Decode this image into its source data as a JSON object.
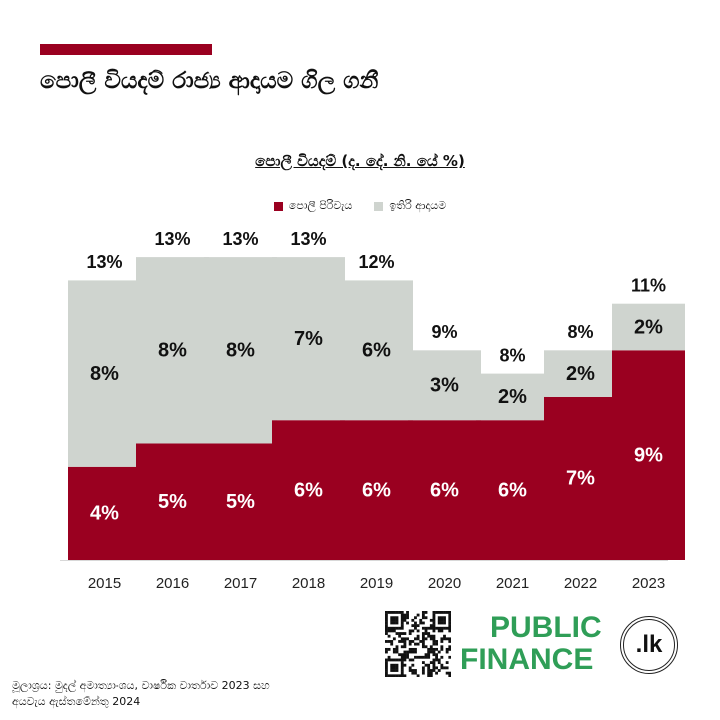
{
  "header": {
    "title": "පොලී වියදම් රාජ්‍ය ආදායම ගිල ගනී"
  },
  "colors": {
    "accent": "#9a0020",
    "interest": "#9a0020",
    "other": "#cfd4cf"
  },
  "chart_data": {
    "type": "bar",
    "stacked": true,
    "title": "පොලී වියදම් (ද. දේ. නි. යේ %)",
    "categories": [
      "2015",
      "2016",
      "2017",
      "2018",
      "2019",
      "2020",
      "2021",
      "2022",
      "2023"
    ],
    "series": [
      {
        "name": "පොලී පිරිවැය",
        "color": "#9a0020",
        "values": [
          4,
          5,
          5,
          6,
          6,
          6,
          6,
          7,
          9
        ],
        "labels": [
          "4%",
          "5%",
          "5%",
          "6%",
          "6%",
          "6%",
          "6%",
          "7%",
          "9%"
        ]
      },
      {
        "name": "ඉතිරි ආදායම",
        "color": "#cfd4cf",
        "values": [
          8,
          8,
          8,
          7,
          6,
          3,
          2,
          2,
          2
        ],
        "labels": [
          "8%",
          "8%",
          "8%",
          "7%",
          "6%",
          "3%",
          "2%",
          "2%",
          "2%"
        ]
      }
    ],
    "totals": [
      13,
      13,
      13,
      13,
      12,
      9,
      8,
      8,
      11
    ],
    "total_labels": [
      "13%",
      "13%",
      "13%",
      "13%",
      "12%",
      "9%",
      "8%",
      "8%",
      "11%"
    ],
    "ylim": [
      0,
      14
    ],
    "legend_position": "top-center",
    "grid": false
  },
  "footer": {
    "source_line1": "මූලාශ්‍රය: මුදල් අමාත්‍යාංශය, වාර්ෂික වාර්තාව 2023 සහ",
    "source_line2": "අයවැය ඇස්තමේන්තු 2024",
    "logo_line1": "PUBLIC",
    "logo_line2": "FINANCE",
    "logo_suffix": ".lk"
  }
}
